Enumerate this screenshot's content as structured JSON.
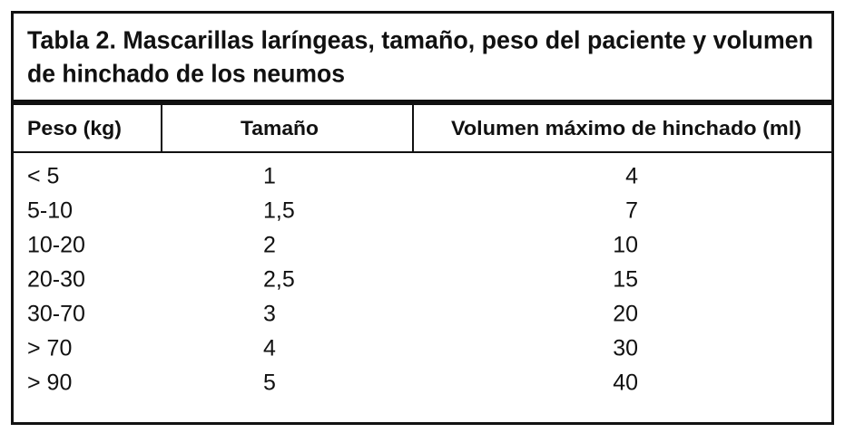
{
  "table": {
    "title": [
      "Tabla 2. Mascarillas laríngeas, tamaño, peso del paciente y volumen",
      "de hinchado de los neumos"
    ],
    "header": [
      "Peso (kg)",
      "Tamaño",
      "Volumen máximo de hinchado (ml)"
    ],
    "rows": [
      [
        "< 5",
        "1",
        "4"
      ],
      [
        "5-10",
        "1,5",
        "7"
      ],
      [
        "10-20",
        "2",
        "10"
      ],
      [
        "20-30",
        "2,5",
        "15"
      ],
      [
        "30-70",
        "3",
        "20"
      ],
      [
        "> 70",
        "4",
        "30"
      ],
      [
        "> 90",
        "5",
        "40"
      ]
    ]
  }
}
